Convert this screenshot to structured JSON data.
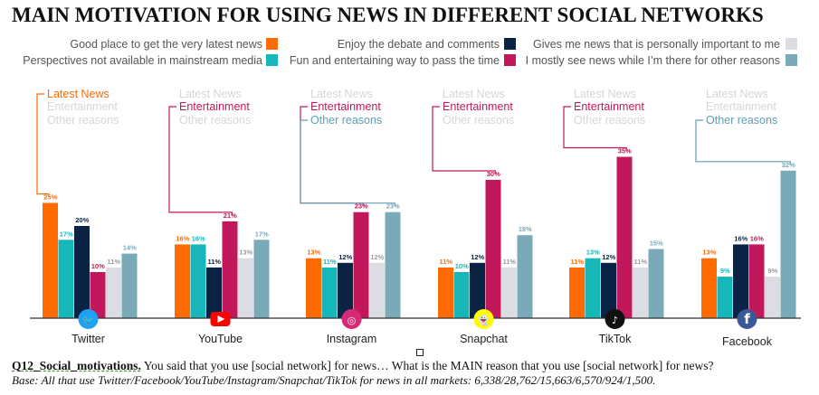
{
  "title": "MAIN MOTIVATION FOR USING NEWS IN DIFFERENT SOCIAL NETWORKS",
  "legend": [
    {
      "label": "Good place to get the very latest news",
      "color": "#ff6b00"
    },
    {
      "label": "Perspectives not available in mainstream media",
      "color": "#16b6b9"
    },
    {
      "label": "Enjoy the debate and comments",
      "color": "#0a2345"
    },
    {
      "label": "Fun and entertaining way to pass the time",
      "color": "#c2185b"
    },
    {
      "label": "Gives me news that is personally important to me",
      "color": "#dcdde3"
    },
    {
      "label": "I mostly see news while I’m there for other reasons",
      "color": "#7aaab8"
    }
  ],
  "chart_data": {
    "type": "bar",
    "title": "MAIN MOTIVATION FOR USING NEWS IN DIFFERENT SOCIAL NETWORKS",
    "xlabel": "",
    "ylabel": "",
    "ylim": [
      0,
      40
    ],
    "categories": [
      "Twitter",
      "YouTube",
      "Instagram",
      "Snapchat",
      "TikTok",
      "Facebook"
    ],
    "category_icons": [
      "twitter-icon",
      "youtube-icon",
      "instagram-icon",
      "snapchat-icon",
      "tiktok-icon",
      "facebook-icon"
    ],
    "series": [
      {
        "name": "Good place to get the very latest news",
        "color": "#ff6b00",
        "values": [
          25,
          16,
          13,
          11,
          11,
          13
        ]
      },
      {
        "name": "Perspectives not available in mainstream media",
        "color": "#16b6b9",
        "values": [
          17,
          16,
          11,
          10,
          13,
          9
        ]
      },
      {
        "name": "Enjoy the debate and comments",
        "color": "#0a2345",
        "values": [
          20,
          11,
          12,
          12,
          12,
          16
        ]
      },
      {
        "name": "Fun and entertaining way to pass the time",
        "color": "#c2185b",
        "values": [
          10,
          21,
          23,
          30,
          35,
          16
        ]
      },
      {
        "name": "Gives me news that is personally important to me",
        "color": "#dcdde3",
        "values": [
          11,
          13,
          12,
          11,
          11,
          9
        ]
      },
      {
        "name": "I mostly see news while I’m there for other reasons",
        "color": "#7aaab8",
        "values": [
          14,
          17,
          23,
          18,
          15,
          32
        ]
      }
    ],
    "annotation_lines": [
      "Latest News",
      "Entertainment",
      "Other reasons"
    ],
    "annotation_highlight_series": [
      0,
      3,
      3,
      3,
      3,
      5
    ],
    "annotation_highlight_also": [
      null,
      null,
      5,
      null,
      null,
      null
    ],
    "label_colors": {
      "Latest News": "#ff6b00",
      "Entertainment": "#c2185b",
      "Other reasons": "#5e9fb0",
      "inactive": "#d6d6d6"
    }
  },
  "footer": {
    "question_id": "Q12_Social_motivations.",
    "question_text": " You said that you use [social network] for news… What is the MAIN reason that you use [social network] for news?",
    "base": "Base: All that use Twitter/Facebook/YouTube/Instagram/Snapchat/TikTok for news in all markets: 6,338/28,762/15,663/6,570/924/1,500."
  }
}
